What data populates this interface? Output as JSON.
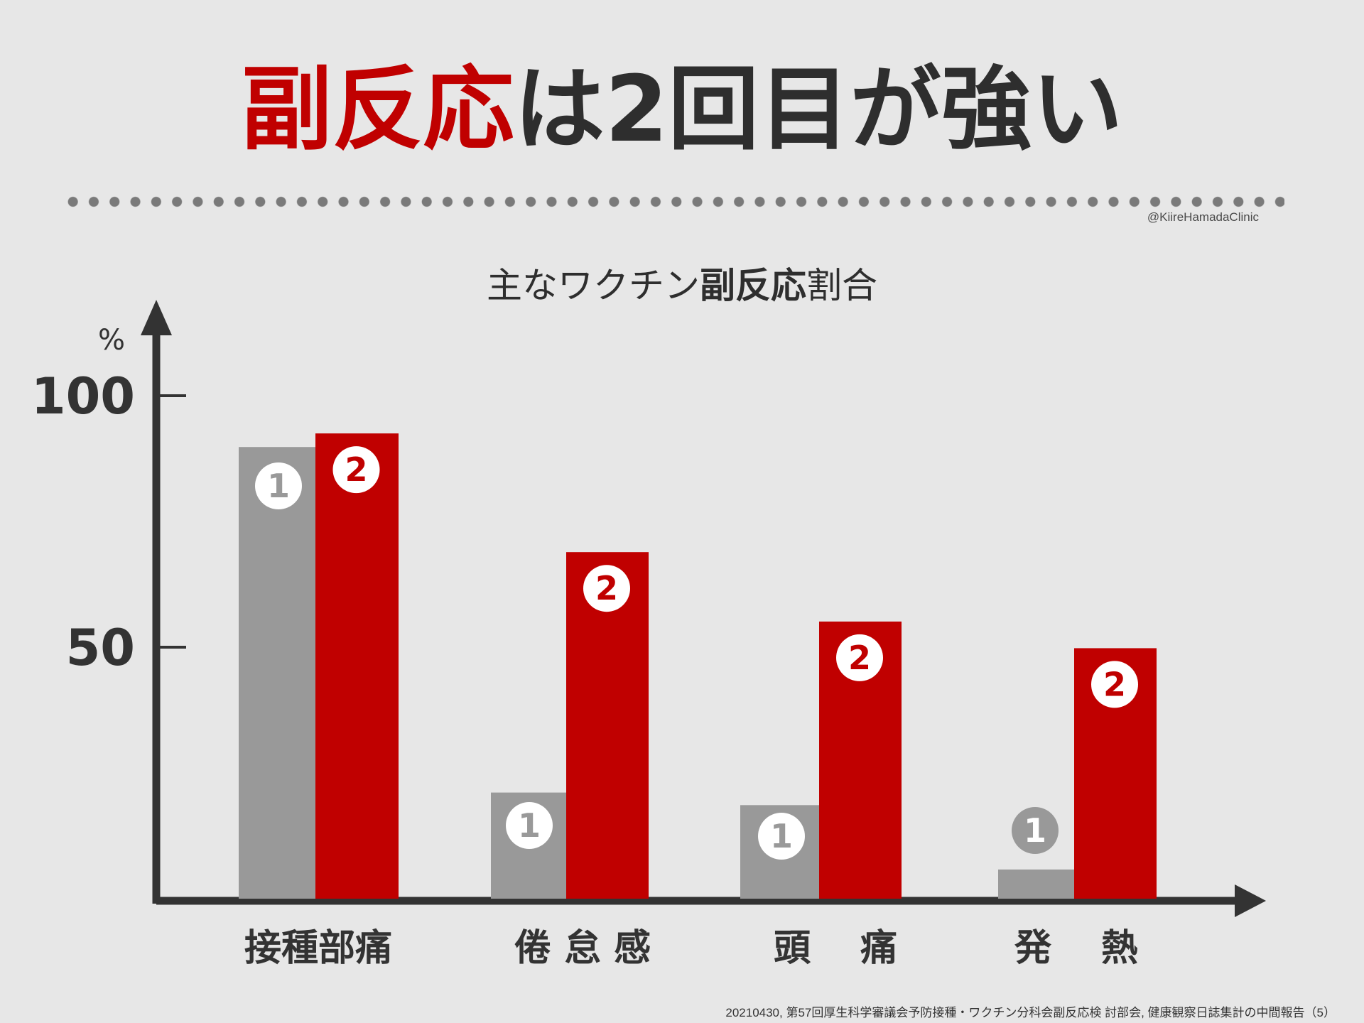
{
  "title": {
    "part_red": "副反応",
    "part_dark": "は2回目が強い"
  },
  "credit": "@KiireHamadaClinic",
  "subtitle": {
    "pre": "主なワクチン",
    "bold": "副反応",
    "post": "割合"
  },
  "source": "20210430, 第57回厚生科学審議会予防接種・ワクチン分科会副反応検 討部会, 健康観察日誌集計の中間報告（5）",
  "colors": {
    "first_dose": "#999999",
    "second_dose": "#c00000",
    "axis": "#333333",
    "background": "#e7e7e7"
  },
  "chart_data": {
    "type": "bar",
    "ylabel": "%",
    "ylim": [
      0,
      100
    ],
    "yticks": [
      50,
      100
    ],
    "categories": [
      "接種部痛",
      "倦 怠 感",
      "頭　 痛",
      "発　 熱"
    ],
    "series": [
      {
        "name": "1",
        "marker": "1",
        "color": "#999999",
        "values": [
          89.8,
          21.1,
          18.6,
          5.8
        ]
      },
      {
        "name": "2",
        "marker": "2",
        "color": "#c00000",
        "values": [
          92.5,
          68.9,
          55.1,
          49.8
        ]
      }
    ],
    "grid": false,
    "legend": "none"
  }
}
